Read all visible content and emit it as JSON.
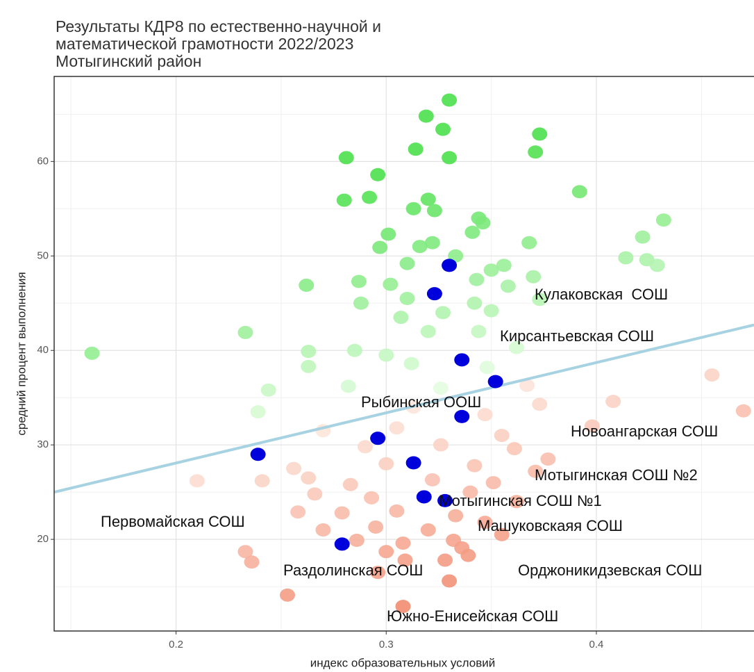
{
  "chart_data": {
    "type": "scatter",
    "title": [
      "Результаты КДР8 по естественно-научной и",
      "математической грамотности 2022/2023",
      "Мотыгинский район"
    ],
    "xlabel": "индекс образовательных условий",
    "ylabel": "средний процент выполнения",
    "xlim": [
      0.142,
      0.475
    ],
    "ylim": [
      10.3,
      69
    ],
    "xticks": [
      0.2,
      0.3,
      0.4
    ],
    "yticks": [
      20,
      30,
      40,
      50,
      60
    ],
    "grid": true,
    "background": {
      "colors": {
        "above_far": "#4ce04c",
        "above_near": "#ecffe8",
        "below_near": "#fde6dc",
        "below_far": "#f07a5c"
      },
      "x": [
        0.33,
        0.319,
        0.327,
        0.373,
        0.314,
        0.371,
        0.281,
        0.33,
        0.296,
        0.392,
        0.28,
        0.292,
        0.32,
        0.313,
        0.323,
        0.344,
        0.346,
        0.432,
        0.301,
        0.341,
        0.422,
        0.316,
        0.322,
        0.368,
        0.297,
        0.333,
        0.414,
        0.424,
        0.429,
        0.31,
        0.35,
        0.356,
        0.287,
        0.262,
        0.302,
        0.343,
        0.37,
        0.358,
        0.288,
        0.31,
        0.342,
        0.373,
        0.307,
        0.327,
        0.35,
        0.233,
        0.32,
        0.344,
        0.16,
        0.263,
        0.285,
        0.3,
        0.362,
        0.263,
        0.312,
        0.348,
        0.244,
        0.282,
        0.326,
        0.367,
        0.455,
        0.239,
        0.313,
        0.347,
        0.373,
        0.408,
        0.47,
        0.398,
        0.27,
        0.305,
        0.355,
        0.29,
        0.326,
        0.361,
        0.256,
        0.3,
        0.342,
        0.377,
        0.21,
        0.241,
        0.263,
        0.283,
        0.322,
        0.351,
        0.371,
        0.266,
        0.293,
        0.34,
        0.362,
        0.258,
        0.279,
        0.305,
        0.333,
        0.347,
        0.27,
        0.295,
        0.32,
        0.355,
        0.286,
        0.308,
        0.332,
        0.233,
        0.3,
        0.336,
        0.236,
        0.339,
        0.309,
        0.328,
        0.296,
        0.33,
        0.253,
        0.308
      ],
      "y": [
        66.5,
        64.8,
        63.4,
        62.9,
        61.3,
        61.0,
        60.4,
        60.4,
        58.6,
        56.8,
        55.9,
        56.2,
        56.0,
        55.0,
        54.8,
        54.0,
        53.5,
        53.8,
        52.3,
        52.5,
        52.0,
        51.0,
        51.4,
        51.4,
        50.9,
        50.0,
        49.8,
        49.6,
        49.0,
        49.2,
        48.5,
        49.0,
        47.3,
        46.9,
        47.0,
        47.5,
        47.8,
        46.8,
        45.0,
        45.5,
        45.0,
        45.4,
        43.5,
        44.0,
        44.2,
        41.9,
        42.0,
        42.0,
        39.7,
        39.9,
        40.0,
        39.5,
        40.3,
        38.3,
        38.6,
        38.2,
        35.8,
        36.2,
        36.0,
        36.3,
        37.4,
        33.5,
        34.0,
        33.2,
        34.3,
        34.6,
        33.6,
        32.0,
        31.5,
        31.8,
        31.0,
        29.8,
        30.0,
        29.6,
        27.5,
        28.0,
        27.8,
        28.5,
        26.2,
        26.2,
        26.5,
        25.8,
        26.3,
        26.0,
        27.2,
        24.8,
        24.4,
        25.0,
        24.0,
        22.9,
        22.8,
        23.0,
        22.5,
        21.8,
        21.0,
        21.3,
        21.0,
        20.5,
        19.9,
        19.6,
        19.9,
        18.7,
        18.7,
        19.1,
        17.6,
        18.3,
        17.8,
        17.8,
        16.5,
        15.6,
        14.1,
        12.9
      ]
    },
    "highlight": {
      "color": "#0000dd",
      "x": [
        0.33,
        0.323,
        0.336,
        0.352,
        0.336,
        0.296,
        0.313,
        0.318,
        0.328,
        0.279,
        0.239
      ],
      "y": [
        49.0,
        46.0,
        39.0,
        36.7,
        33.0,
        30.7,
        28.1,
        24.5,
        24.1,
        19.5,
        29.0
      ]
    },
    "trend": {
      "color": "#a6d2e2",
      "x": [
        0.142,
        0.475
      ],
      "y": [
        25.0,
        42.7
      ]
    },
    "annotations": [
      "Кулаковская  СОШ",
      "Кирсантьевская СОШ",
      "Рыбинская ООШ",
      "Новоангарская СОШ",
      "Мотыгинская СОШ №2",
      "Мотыгинская СОШ №1",
      "Первомайская СОШ",
      "Машуковскаяя СОШ",
      "Раздолинская СОШ",
      "Орджоникидзевская СОШ",
      "Южно-Енисейская СОШ"
    ]
  }
}
